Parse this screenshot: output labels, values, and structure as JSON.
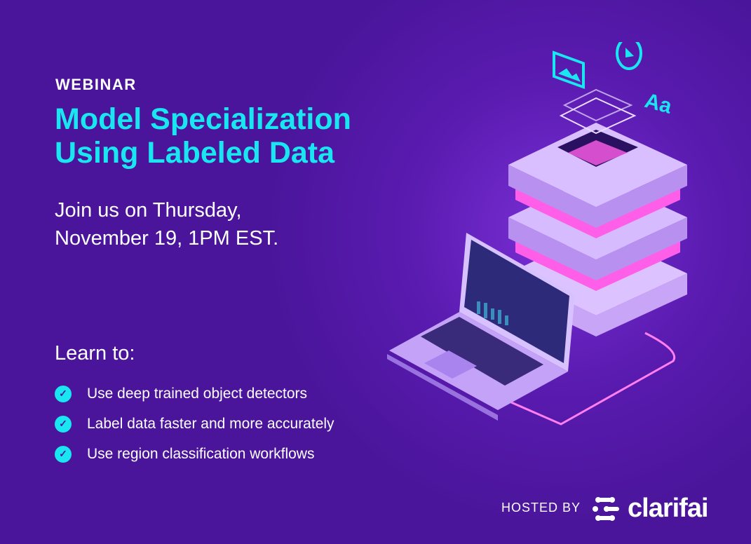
{
  "kicker": "WEBINAR",
  "title_line1": "Model Specialization",
  "title_line2": "Using Labeled Data",
  "date_line1": "Join us on Thursday,",
  "date_line2": "November 19, 1PM EST.",
  "learn_heading": "Learn to:",
  "learn_items": [
    "Use deep trained object detectors",
    "Label data faster and more accurately",
    "Use region classification workflows"
  ],
  "hosted_by": "HOSTED BY",
  "brand": "clarifai",
  "colors": {
    "background": "#4a159b",
    "accent": "#19e6f0",
    "highlight": "#ff5ee8"
  }
}
